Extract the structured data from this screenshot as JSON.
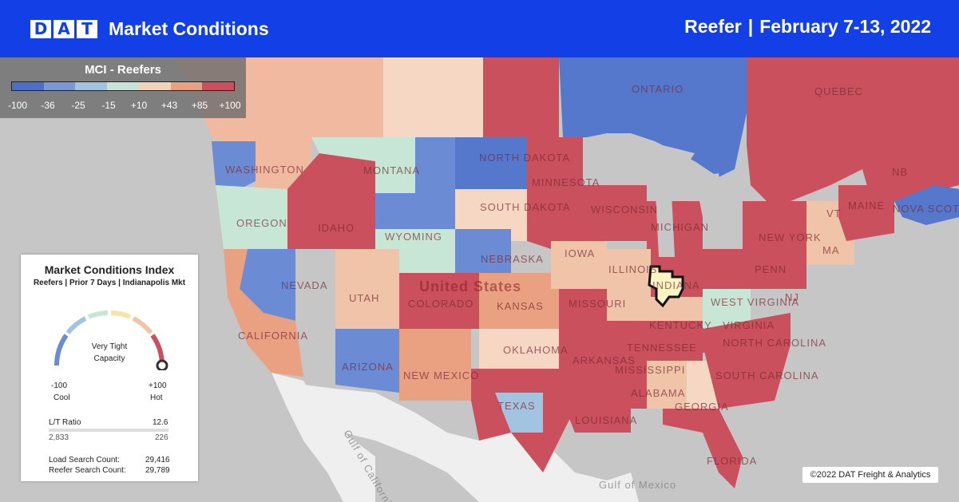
{
  "header": {
    "logo_letters": [
      "D",
      "A",
      "T"
    ],
    "title": "Market Conditions",
    "equipment": "Reefer",
    "separator": "|",
    "date_range": "February 7-13, 2022"
  },
  "legend": {
    "title": "MCI - Reefers",
    "ticks": [
      "-100",
      "-36",
      "-25",
      "-15",
      "+10",
      "+43",
      "+85",
      "+100"
    ],
    "colors": [
      "#4d6fcc",
      "#7b98d6",
      "#a3c4e0",
      "#c9e3d8",
      "#f4d4b8",
      "#e9a182",
      "#c9505c"
    ]
  },
  "index_card": {
    "title": "Market Conditions Index",
    "subtitle": "Reefers | Prior 7 Days | Indianapolis Mkt",
    "gauge_value": 100,
    "gauge_label_line1": "Very Tight",
    "gauge_label_line2": "Capacity",
    "min_value": "-100",
    "min_label": "Cool",
    "max_value": "+100",
    "max_label": "Hot",
    "lt_ratio_label": "L/T Ratio",
    "lt_ratio_value": "12.6",
    "loads": "2,833",
    "trucks": "226",
    "load_search_label": "Load Search Count:",
    "load_search_value": "29,416",
    "reefer_search_label": "Reefer Search Count:",
    "reefer_search_value": "29,789"
  },
  "map": {
    "country_label": "United States",
    "region_labels": [
      "WASHINGTON",
      "OREGON",
      "CALIFORNIA",
      "NEVADA",
      "IDAHO",
      "MONTANA",
      "WYOMING",
      "UTAH",
      "ARIZONA",
      "COLORADO",
      "NEW MEXICO",
      "NORTH DAKOTA",
      "SOUTH DAKOTA",
      "NEBRASKA",
      "KANSAS",
      "OKLAHOMA",
      "TEXAS",
      "MINNESOTA",
      "IOWA",
      "MISSOURI",
      "ARKANSAS",
      "LOUISIANA",
      "MISSISSIPPI",
      "ALABAMA",
      "GEORGIA",
      "FLORIDA",
      "TENNESSEE",
      "KENTUCKY",
      "ILLINOIS",
      "INDIANA",
      "WISCONSIN",
      "MICHIGAN",
      "WEST VIRGINIA",
      "VIRGINIA",
      "NORTH CAROLINA",
      "SOUTH CAROLINA",
      "PENN",
      "NEW YORK",
      "NJ",
      "VT",
      "MA",
      "MAINE",
      "ONTARIO",
      "QUEBEC",
      "NB",
      "NOVA SCOTIA"
    ],
    "water_labels": [
      "Gulf of California",
      "Gulf of Mexico"
    ],
    "highlighted_market": "Indianapolis"
  },
  "copyright": "©2022 DAT Freight & Analytics"
}
